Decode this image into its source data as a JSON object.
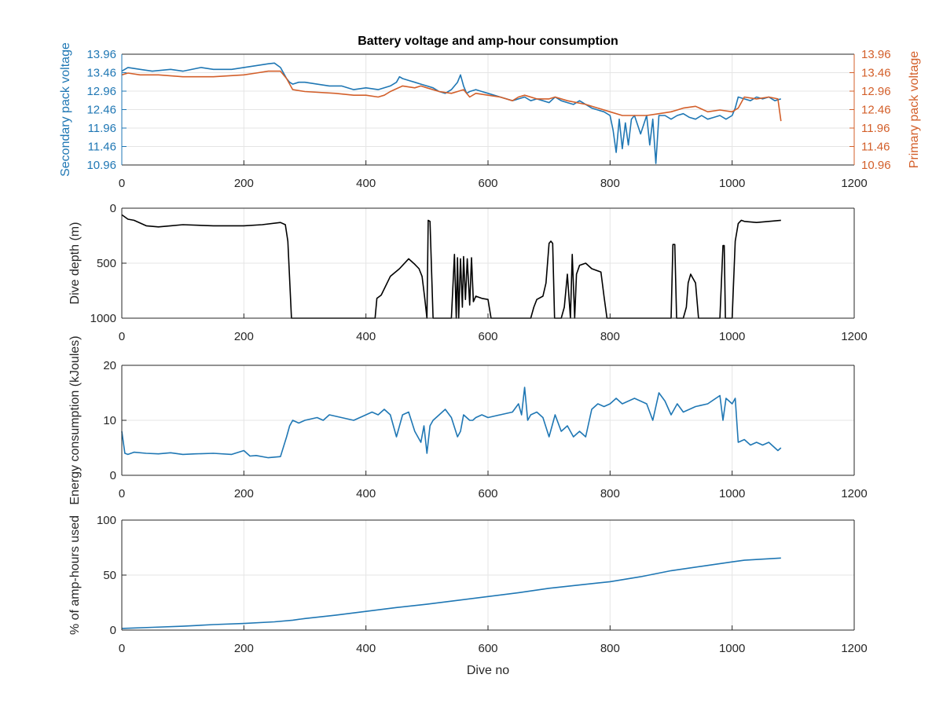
{
  "chart_data": [
    {
      "type": "line",
      "title": "Battery voltage and amp-hour consumption",
      "xlabel": "",
      "ylabel_left": "Secondary pack voltage",
      "ylabel_right": "Primary pack voltage",
      "xlim": [
        0,
        1200
      ],
      "ylim": [
        10.96,
        13.96
      ],
      "xticks": [
        "0",
        "200",
        "400",
        "600",
        "800",
        "1000",
        "1200"
      ],
      "yticks_left": [
        "10.96",
        "11.46",
        "11.96",
        "12.46",
        "12.96",
        "13.46",
        "13.96"
      ],
      "yticks_right": [
        "10.96",
        "11.46",
        "11.96",
        "12.46",
        "12.96",
        "13.46",
        "13.96"
      ],
      "grid": true,
      "colors": {
        "secondary": "#1f77b4",
        "primary": "#d35f2a"
      },
      "series": [
        {
          "key": "secondary",
          "x": [
            0,
            10,
            30,
            50,
            80,
            100,
            130,
            150,
            180,
            200,
            220,
            240,
            250,
            260,
            270,
            275,
            280,
            290,
            300,
            320,
            340,
            360,
            380,
            400,
            420,
            440,
            450,
            455,
            460,
            470,
            480,
            490,
            500,
            510,
            520,
            530,
            540,
            550,
            555,
            560,
            565,
            570,
            580,
            590,
            600,
            620,
            640,
            650,
            660,
            670,
            680,
            690,
            700,
            710,
            720,
            730,
            740,
            750,
            760,
            770,
            780,
            790,
            800,
            805,
            810,
            815,
            820,
            825,
            830,
            835,
            840,
            850,
            860,
            865,
            870,
            875,
            880,
            890,
            900,
            910,
            920,
            930,
            940,
            950,
            960,
            970,
            980,
            990,
            1000,
            1005,
            1010,
            1020,
            1030,
            1040,
            1050,
            1060,
            1070,
            1080
          ],
          "y": [
            13.5,
            13.6,
            13.55,
            13.5,
            13.55,
            13.5,
            13.6,
            13.55,
            13.55,
            13.6,
            13.65,
            13.7,
            13.72,
            13.6,
            13.3,
            13.2,
            13.15,
            13.2,
            13.2,
            13.15,
            13.1,
            13.1,
            13.0,
            13.05,
            13.0,
            13.1,
            13.2,
            13.35,
            13.3,
            13.25,
            13.2,
            13.15,
            13.1,
            13.05,
            12.95,
            12.9,
            13.0,
            13.2,
            13.4,
            13.1,
            12.9,
            12.95,
            13.0,
            12.95,
            12.9,
            12.8,
            12.7,
            12.75,
            12.8,
            12.7,
            12.75,
            12.7,
            12.65,
            12.8,
            12.7,
            12.65,
            12.6,
            12.7,
            12.6,
            12.5,
            12.45,
            12.4,
            12.3,
            11.9,
            11.3,
            12.2,
            11.4,
            12.1,
            11.5,
            12.2,
            12.3,
            11.8,
            12.3,
            11.5,
            12.2,
            11.0,
            12.3,
            12.3,
            12.2,
            12.3,
            12.35,
            12.25,
            12.2,
            12.3,
            12.2,
            12.25,
            12.3,
            12.2,
            12.3,
            12.5,
            12.8,
            12.75,
            12.7,
            12.8,
            12.75,
            12.8,
            12.7,
            12.75
          ]
        },
        {
          "key": "primary",
          "x": [
            0,
            10,
            30,
            60,
            100,
            150,
            200,
            220,
            240,
            260,
            270,
            280,
            300,
            350,
            380,
            400,
            420,
            430,
            440,
            460,
            480,
            490,
            500,
            520,
            540,
            550,
            560,
            570,
            580,
            600,
            620,
            640,
            650,
            660,
            680,
            700,
            710,
            730,
            760,
            780,
            800,
            820,
            840,
            860,
            880,
            900,
            910,
            920,
            940,
            960,
            980,
            1000,
            1010,
            1020,
            1040,
            1060,
            1075,
            1080
          ],
          "y": [
            13.4,
            13.45,
            13.4,
            13.4,
            13.35,
            13.35,
            13.4,
            13.45,
            13.5,
            13.5,
            13.3,
            13.0,
            12.95,
            12.9,
            12.85,
            12.85,
            12.8,
            12.85,
            12.95,
            13.1,
            13.05,
            13.1,
            13.05,
            12.95,
            12.9,
            12.95,
            13.0,
            12.8,
            12.9,
            12.85,
            12.8,
            12.7,
            12.8,
            12.85,
            12.75,
            12.75,
            12.8,
            12.7,
            12.6,
            12.5,
            12.4,
            12.3,
            12.3,
            12.3,
            12.35,
            12.4,
            12.45,
            12.5,
            12.55,
            12.4,
            12.45,
            12.4,
            12.5,
            12.8,
            12.75,
            12.8,
            12.75,
            12.15
          ]
        }
      ]
    },
    {
      "type": "line",
      "title": "",
      "xlabel": "",
      "ylabel": "Dive depth (m)",
      "xlim": [
        0,
        1200
      ],
      "ylim": [
        0,
        1000
      ],
      "y_reversed": true,
      "xticks": [
        "0",
        "200",
        "400",
        "600",
        "800",
        "1000",
        "1200"
      ],
      "yticks": [
        "0",
        "500",
        "1000"
      ],
      "grid": true,
      "colors": {
        "line": "#000000"
      },
      "series": [
        {
          "x": [
            0,
            10,
            20,
            40,
            60,
            80,
            100,
            150,
            200,
            230,
            260,
            268,
            272,
            278,
            290,
            320,
            360,
            400,
            415,
            418,
            425,
            440,
            455,
            470,
            480,
            487,
            492,
            496,
            500,
            502,
            505,
            510,
            520,
            525,
            540,
            545,
            548,
            550,
            552,
            555,
            558,
            560,
            563,
            566,
            570,
            573,
            576,
            580,
            585,
            590,
            600,
            605,
            610,
            650,
            670,
            675,
            680,
            690,
            695,
            700,
            703,
            706,
            709,
            712,
            720,
            725,
            730,
            735,
            738,
            742,
            745,
            750,
            760,
            770,
            785,
            790,
            795,
            800,
            850,
            900,
            903,
            906,
            909,
            912,
            915,
            920,
            925,
            928,
            932,
            935,
            940,
            945,
            948,
            952,
            960,
            980,
            985,
            987,
            989,
            991,
            1000,
            1005,
            1010,
            1015,
            1020,
            1040,
            1060,
            1080
          ],
          "y": [
            60,
            100,
            110,
            160,
            170,
            160,
            150,
            160,
            160,
            150,
            130,
            150,
            300,
            1000,
            1000,
            1000,
            1000,
            1000,
            1000,
            820,
            790,
            620,
            550,
            460,
            510,
            550,
            620,
            800,
            1000,
            110,
            120,
            1000,
            1000,
            1000,
            1000,
            420,
            1000,
            450,
            1000,
            460,
            900,
            440,
            830,
            460,
            880,
            450,
            850,
            800,
            810,
            820,
            830,
            1000,
            1000,
            1000,
            1000,
            900,
            830,
            800,
            680,
            320,
            300,
            320,
            1000,
            1000,
            1000,
            900,
            600,
            1000,
            420,
            1000,
            600,
            520,
            500,
            550,
            580,
            800,
            1000,
            1000,
            1000,
            1000,
            330,
            330,
            1000,
            1000,
            1000,
            1000,
            900,
            680,
            600,
            630,
            680,
            1000,
            1000,
            1000,
            1000,
            1000,
            340,
            340,
            1000,
            1000,
            1000,
            300,
            140,
            110,
            120,
            130,
            120,
            110
          ]
        }
      ]
    },
    {
      "type": "line",
      "title": "",
      "xlabel": "",
      "ylabel": "Energy consumption (kJoules)",
      "xlim": [
        0,
        1200
      ],
      "ylim": [
        0,
        20
      ],
      "xticks": [
        "0",
        "200",
        "400",
        "600",
        "800",
        "1000",
        "1200"
      ],
      "yticks": [
        "0",
        "10",
        "20"
      ],
      "grid": true,
      "colors": {
        "line": "#1f77b4"
      },
      "series": [
        {
          "x": [
            0,
            5,
            10,
            20,
            40,
            60,
            80,
            100,
            120,
            150,
            180,
            200,
            210,
            220,
            240,
            260,
            270,
            275,
            280,
            290,
            300,
            320,
            330,
            340,
            360,
            380,
            400,
            410,
            420,
            430,
            440,
            450,
            460,
            470,
            480,
            490,
            495,
            500,
            505,
            510,
            520,
            530,
            540,
            550,
            555,
            560,
            570,
            575,
            580,
            590,
            600,
            620,
            640,
            650,
            655,
            660,
            665,
            670,
            680,
            690,
            700,
            710,
            720,
            730,
            740,
            750,
            760,
            770,
            780,
            790,
            800,
            810,
            820,
            840,
            860,
            870,
            880,
            890,
            900,
            910,
            920,
            940,
            960,
            980,
            985,
            990,
            1000,
            1005,
            1010,
            1020,
            1030,
            1040,
            1050,
            1060,
            1070,
            1075,
            1080
          ],
          "y": [
            8,
            4,
            3.8,
            4.2,
            4.0,
            3.9,
            4.1,
            3.8,
            3.9,
            4.0,
            3.8,
            4.5,
            3.5,
            3.6,
            3.2,
            3.4,
            7,
            9,
            10,
            9.5,
            10,
            10.5,
            10,
            11,
            10.5,
            10,
            11,
            11.5,
            11,
            12,
            11,
            7,
            11,
            11.5,
            8,
            6,
            9,
            4,
            9,
            10,
            11,
            12,
            10.5,
            7,
            8,
            11,
            10,
            10,
            10.5,
            11,
            10.5,
            11,
            11.5,
            13,
            11,
            16,
            10,
            11,
            11.5,
            10.5,
            7,
            11,
            8,
            9,
            7,
            8,
            7,
            12,
            13,
            12.5,
            13,
            14,
            13,
            14,
            13,
            10,
            15,
            13.5,
            11,
            13,
            11.5,
            12.5,
            13,
            14.5,
            10,
            14,
            13,
            14,
            6,
            6.5,
            5.5,
            6,
            5.5,
            6,
            5,
            4.5,
            5
          ]
        }
      ]
    },
    {
      "type": "line",
      "title": "",
      "xlabel": "Dive no",
      "ylabel": "% of amp-hours used",
      "xlim": [
        0,
        1200
      ],
      "ylim": [
        0,
        100
      ],
      "xticks": [
        "0",
        "200",
        "400",
        "600",
        "800",
        "1000",
        "1200"
      ],
      "yticks": [
        "0",
        "50",
        "100"
      ],
      "grid": true,
      "colors": {
        "line": "#1f77b4"
      },
      "series": [
        {
          "x": [
            0,
            50,
            100,
            150,
            200,
            250,
            280,
            300,
            350,
            400,
            450,
            500,
            550,
            600,
            650,
            700,
            750,
            800,
            850,
            900,
            950,
            1000,
            1020,
            1050,
            1080
          ],
          "y": [
            1.5,
            2.5,
            3.5,
            5,
            6,
            7.5,
            9,
            10.5,
            13.5,
            17,
            20.5,
            23.5,
            27,
            30.5,
            34,
            38,
            41,
            44,
            48.5,
            54,
            58,
            62,
            63.5,
            64.5,
            65.5
          ]
        }
      ]
    }
  ]
}
